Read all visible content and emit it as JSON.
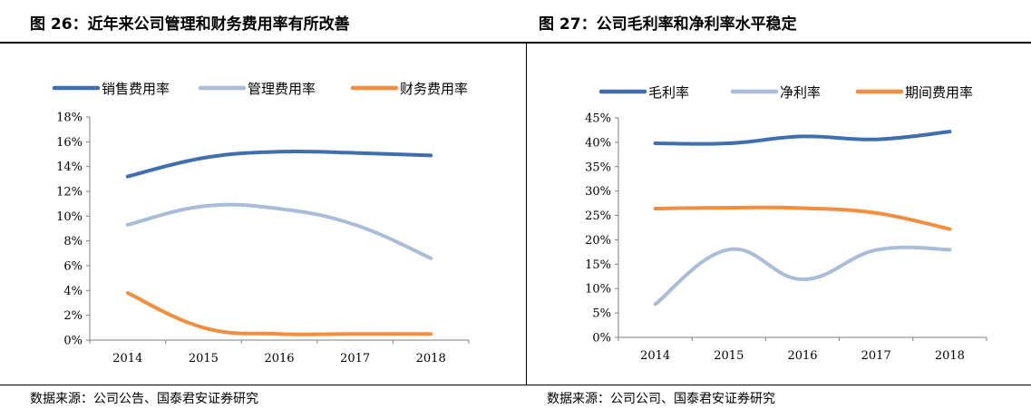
{
  "left": {
    "title": "图 26：近年来公司管理和财务费用率有所改善",
    "source": "数据来源：公司公告、国泰君安证券研究",
    "chart_data": {
      "type": "line",
      "x": [
        "2014",
        "2015",
        "2016",
        "2017",
        "2018"
      ],
      "ylim": [
        0,
        18
      ],
      "yticks": [
        0,
        2,
        4,
        6,
        8,
        10,
        12,
        14,
        16,
        18
      ],
      "ytick_labels": [
        "0%",
        "2%",
        "4%",
        "6%",
        "8%",
        "10%",
        "12%",
        "14%",
        "16%",
        "18%"
      ],
      "legend_position": "top",
      "series": [
        {
          "name": "销售费用率",
          "color": "#3f6fae",
          "values": [
            13.2,
            14.7,
            15.2,
            15.1,
            14.9
          ]
        },
        {
          "name": "管理费用率",
          "color": "#a9bcd8",
          "values": [
            9.3,
            10.8,
            10.6,
            9.3,
            6.6
          ]
        },
        {
          "name": "财务费用率",
          "color": "#f28e3d",
          "values": [
            3.8,
            1.0,
            0.5,
            0.5,
            0.5
          ]
        }
      ]
    }
  },
  "right": {
    "title": "图 27：公司毛利率和净利率水平稳定",
    "source": "数据来源：公司公司、国泰君安证券研究",
    "chart_data": {
      "type": "line",
      "x": [
        "2014",
        "2015",
        "2016",
        "2017",
        "2018"
      ],
      "ylim": [
        0,
        45
      ],
      "yticks": [
        0,
        5,
        10,
        15,
        20,
        25,
        30,
        35,
        40,
        45
      ],
      "ytick_labels": [
        "0%",
        "5%",
        "10%",
        "15%",
        "20%",
        "25%",
        "30%",
        "35%",
        "40%",
        "45%"
      ],
      "legend_position": "top",
      "series": [
        {
          "name": "毛利率",
          "color": "#3f6fae",
          "values": [
            39.8,
            39.8,
            41.2,
            40.6,
            42.2
          ]
        },
        {
          "name": "净利率",
          "color": "#a9bcd8",
          "values": [
            6.8,
            18.0,
            11.9,
            17.9,
            18.0
          ]
        },
        {
          "name": "期间费用率",
          "color": "#f28e3d",
          "values": [
            26.4,
            26.6,
            26.5,
            25.5,
            22.2
          ]
        }
      ]
    }
  }
}
